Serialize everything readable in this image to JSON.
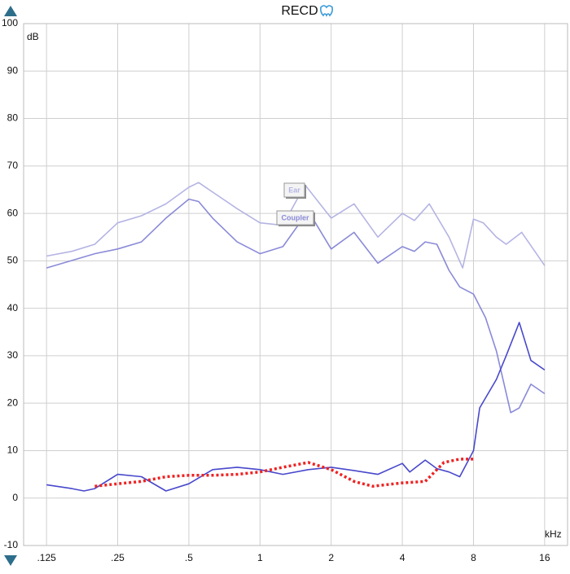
{
  "chart_data": {
    "type": "line",
    "title": "RECD",
    "y_label": "dB",
    "x_label": "kHz",
    "log_x": true,
    "grid": true,
    "xlim": [
      0.1,
      20
    ],
    "ylim": [
      -10,
      100
    ],
    "xticks": [
      {
        "value": 0.125,
        "label": ".125"
      },
      {
        "value": 0.25,
        "label": ".25"
      },
      {
        "value": 0.5,
        "label": ".5"
      },
      1,
      2,
      4,
      8,
      16
    ],
    "yticks": [
      -10,
      0,
      10,
      20,
      30,
      40,
      50,
      60,
      70,
      80,
      90,
      100
    ],
    "series": [
      {
        "name": "Ear",
        "color": "#b4b4e4",
        "dashed": false,
        "x": [
          0.125,
          0.16,
          0.2,
          0.25,
          0.315,
          0.4,
          0.5,
          0.55,
          0.63,
          0.8,
          1,
          1.25,
          1.55,
          2,
          2.5,
          3.15,
          4,
          4.5,
          5.2,
          6.3,
          7.2,
          8,
          8.8,
          10,
          11,
          12.8,
          16
        ],
        "values": [
          51,
          52,
          53.5,
          58,
          59.5,
          62,
          65.5,
          66.5,
          64.5,
          61,
          58,
          57.5,
          66,
          59,
          62,
          55,
          60,
          58.5,
          62,
          55,
          48.5,
          58.8,
          58,
          55,
          53.5,
          56,
          49
        ]
      },
      {
        "name": "Coupler",
        "color": "#8a8ad8",
        "dashed": false,
        "x": [
          0.125,
          0.2,
          0.25,
          0.315,
          0.4,
          0.5,
          0.55,
          0.63,
          0.8,
          1,
          1.25,
          1.6,
          2,
          2.5,
          3.15,
          4,
          4.5,
          5,
          5.6,
          6.3,
          7,
          8,
          9,
          10,
          11.5,
          12.5,
          14,
          16
        ],
        "values": [
          48.5,
          51.5,
          52.5,
          54,
          59,
          63,
          62.5,
          59,
          54,
          51.5,
          53,
          60.5,
          52.5,
          56,
          49.5,
          53,
          52,
          54,
          53.5,
          48,
          44.5,
          43,
          38,
          31,
          18,
          19,
          24,
          22
        ]
      },
      {
        "color": "#4848cc",
        "dashed": false,
        "x": [
          0.125,
          0.16,
          0.18,
          0.2,
          0.25,
          0.315,
          0.4,
          0.5,
          0.63,
          0.8,
          1,
          1.25,
          1.6,
          2,
          2.5,
          3.15,
          4,
          4.3,
          5,
          5.6,
          6.3,
          7,
          8,
          8.5,
          10,
          11,
          12.5,
          14,
          16
        ],
        "values": [
          2.8,
          2,
          1.5,
          2,
          5,
          4.5,
          1.5,
          3,
          6,
          6.5,
          6,
          5,
          6,
          6.5,
          5.8,
          5,
          7.3,
          5.5,
          8,
          6.2,
          5.5,
          4.5,
          10,
          19,
          25,
          30,
          37,
          29,
          27
        ]
      },
      {
        "color": "#ee2222",
        "dashed": true,
        "x": [
          0.2,
          0.25,
          0.315,
          0.4,
          0.5,
          0.63,
          0.8,
          1,
          1.25,
          1.6,
          2,
          2.5,
          3,
          4,
          5,
          6,
          7,
          8
        ],
        "values": [
          2.5,
          3,
          3.5,
          4.5,
          4.8,
          4.8,
          5,
          5.5,
          6.5,
          7.5,
          6,
          3.5,
          2.5,
          3.2,
          3.5,
          7.5,
          8.2,
          8.2
        ]
      }
    ]
  }
}
